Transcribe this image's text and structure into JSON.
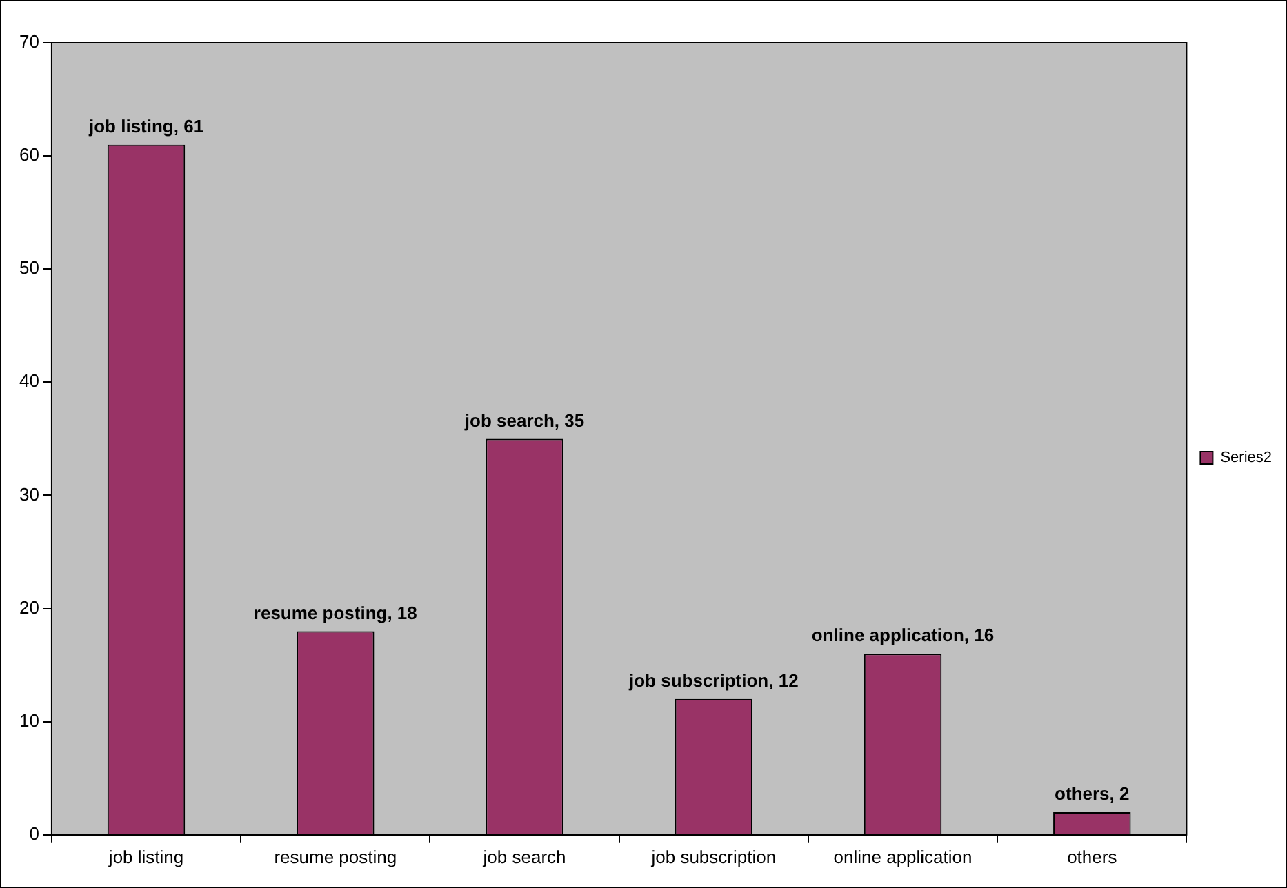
{
  "chart_data": {
    "type": "bar",
    "categories": [
      "job listing",
      "resume posting",
      "job search",
      "job subscription",
      "online application",
      "others"
    ],
    "series": [
      {
        "name": "Series2",
        "color": "#993366",
        "values": [
          61,
          18,
          35,
          12,
          16,
          2
        ],
        "value_labels": [
          "job listing, 61",
          "resume posting, 18",
          "job search, 35",
          "job subscription, 12",
          "online application, 16",
          "others, 2"
        ]
      }
    ],
    "ylim": [
      0,
      70
    ],
    "yticks": [
      0,
      10,
      20,
      30,
      40,
      50,
      60,
      70
    ],
    "grid": false,
    "legend": "right"
  }
}
